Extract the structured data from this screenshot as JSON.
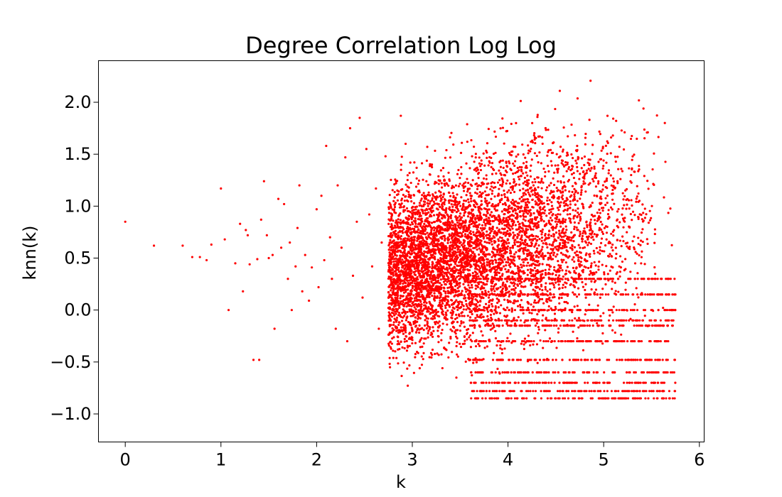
{
  "chart_data": {
    "type": "scatter",
    "title": "Degree Correlation Log Log",
    "xlabel": "k",
    "ylabel": "knn(k)",
    "xlim": [
      -0.28,
      6.05
    ],
    "ylim": [
      -1.27,
      2.4
    ],
    "x_ticks": [
      "0",
      "1",
      "2",
      "3",
      "4",
      "5",
      "6"
    ],
    "x_tick_values": [
      0,
      1,
      2,
      3,
      4,
      5,
      6
    ],
    "y_ticks": [
      "2.0",
      "1.5",
      "1.0",
      "0.5",
      "0.0",
      "−0.5",
      "−1.0"
    ],
    "y_tick_values": [
      2.0,
      1.5,
      1.0,
      0.5,
      0.0,
      -0.5,
      -1.0
    ],
    "grid": false,
    "marker_color": "#ff0000",
    "series": [
      {
        "points": [
          [
            0.0,
            0.85
          ],
          [
            0.3,
            0.62
          ],
          [
            0.6,
            0.62
          ],
          [
            0.7,
            0.51
          ],
          [
            0.78,
            0.51
          ],
          [
            0.85,
            0.48
          ],
          [
            0.9,
            0.63
          ],
          [
            1.0,
            1.17
          ],
          [
            1.04,
            0.68
          ],
          [
            1.08,
            0.0
          ],
          [
            1.15,
            0.45
          ],
          [
            1.2,
            0.83
          ],
          [
            1.23,
            0.18
          ],
          [
            1.26,
            0.77
          ],
          [
            1.28,
            0.72
          ],
          [
            1.3,
            0.44
          ],
          [
            1.34,
            -0.48
          ],
          [
            1.38,
            0.49
          ],
          [
            1.4,
            -0.48
          ],
          [
            1.42,
            0.87
          ],
          [
            1.45,
            1.24
          ],
          [
            1.48,
            0.72
          ],
          [
            1.5,
            0.5
          ],
          [
            1.54,
            0.53
          ],
          [
            1.56,
            -0.18
          ],
          [
            1.6,
            1.07
          ],
          [
            1.63,
            0.6
          ],
          [
            1.66,
            1.02
          ],
          [
            1.7,
            0.3
          ],
          [
            1.72,
            0.65
          ],
          [
            1.74,
            0.0
          ],
          [
            1.78,
            0.42
          ],
          [
            1.8,
            0.79
          ],
          [
            1.82,
            1.2
          ],
          [
            1.85,
            0.18
          ],
          [
            1.88,
            0.53
          ],
          [
            1.92,
            0.09
          ],
          [
            1.95,
            0.41
          ],
          [
            2.0,
            0.97
          ],
          [
            2.02,
            0.22
          ],
          [
            2.05,
            1.1
          ],
          [
            2.08,
            0.48
          ],
          [
            2.1,
            1.58
          ],
          [
            2.14,
            0.7
          ],
          [
            2.16,
            0.3
          ],
          [
            2.2,
            -0.18
          ],
          [
            2.22,
            1.2
          ],
          [
            2.26,
            0.6
          ],
          [
            2.3,
            1.47
          ],
          [
            2.32,
            -0.3
          ],
          [
            2.35,
            1.75
          ],
          [
            2.38,
            0.33
          ],
          [
            2.42,
            0.85
          ],
          [
            2.45,
            1.85
          ],
          [
            2.48,
            0.12
          ],
          [
            2.52,
            1.55
          ],
          [
            2.55,
            0.92
          ],
          [
            2.58,
            0.42
          ],
          [
            2.62,
            1.17
          ],
          [
            2.65,
            -0.18
          ],
          [
            2.68,
            0.65
          ],
          [
            2.72,
            1.48
          ],
          [
            2.75,
            0.02
          ],
          [
            2.78,
            0.88
          ],
          [
            2.8,
            0.35
          ],
          [
            2.83,
            1.22
          ],
          [
            2.85,
            -0.3
          ],
          [
            2.88,
            1.87
          ],
          [
            2.9,
            0.55
          ],
          [
            2.93,
            1.6
          ],
          [
            2.95,
            0.1
          ],
          [
            2.98,
            0.82
          ]
        ]
      }
    ]
  }
}
